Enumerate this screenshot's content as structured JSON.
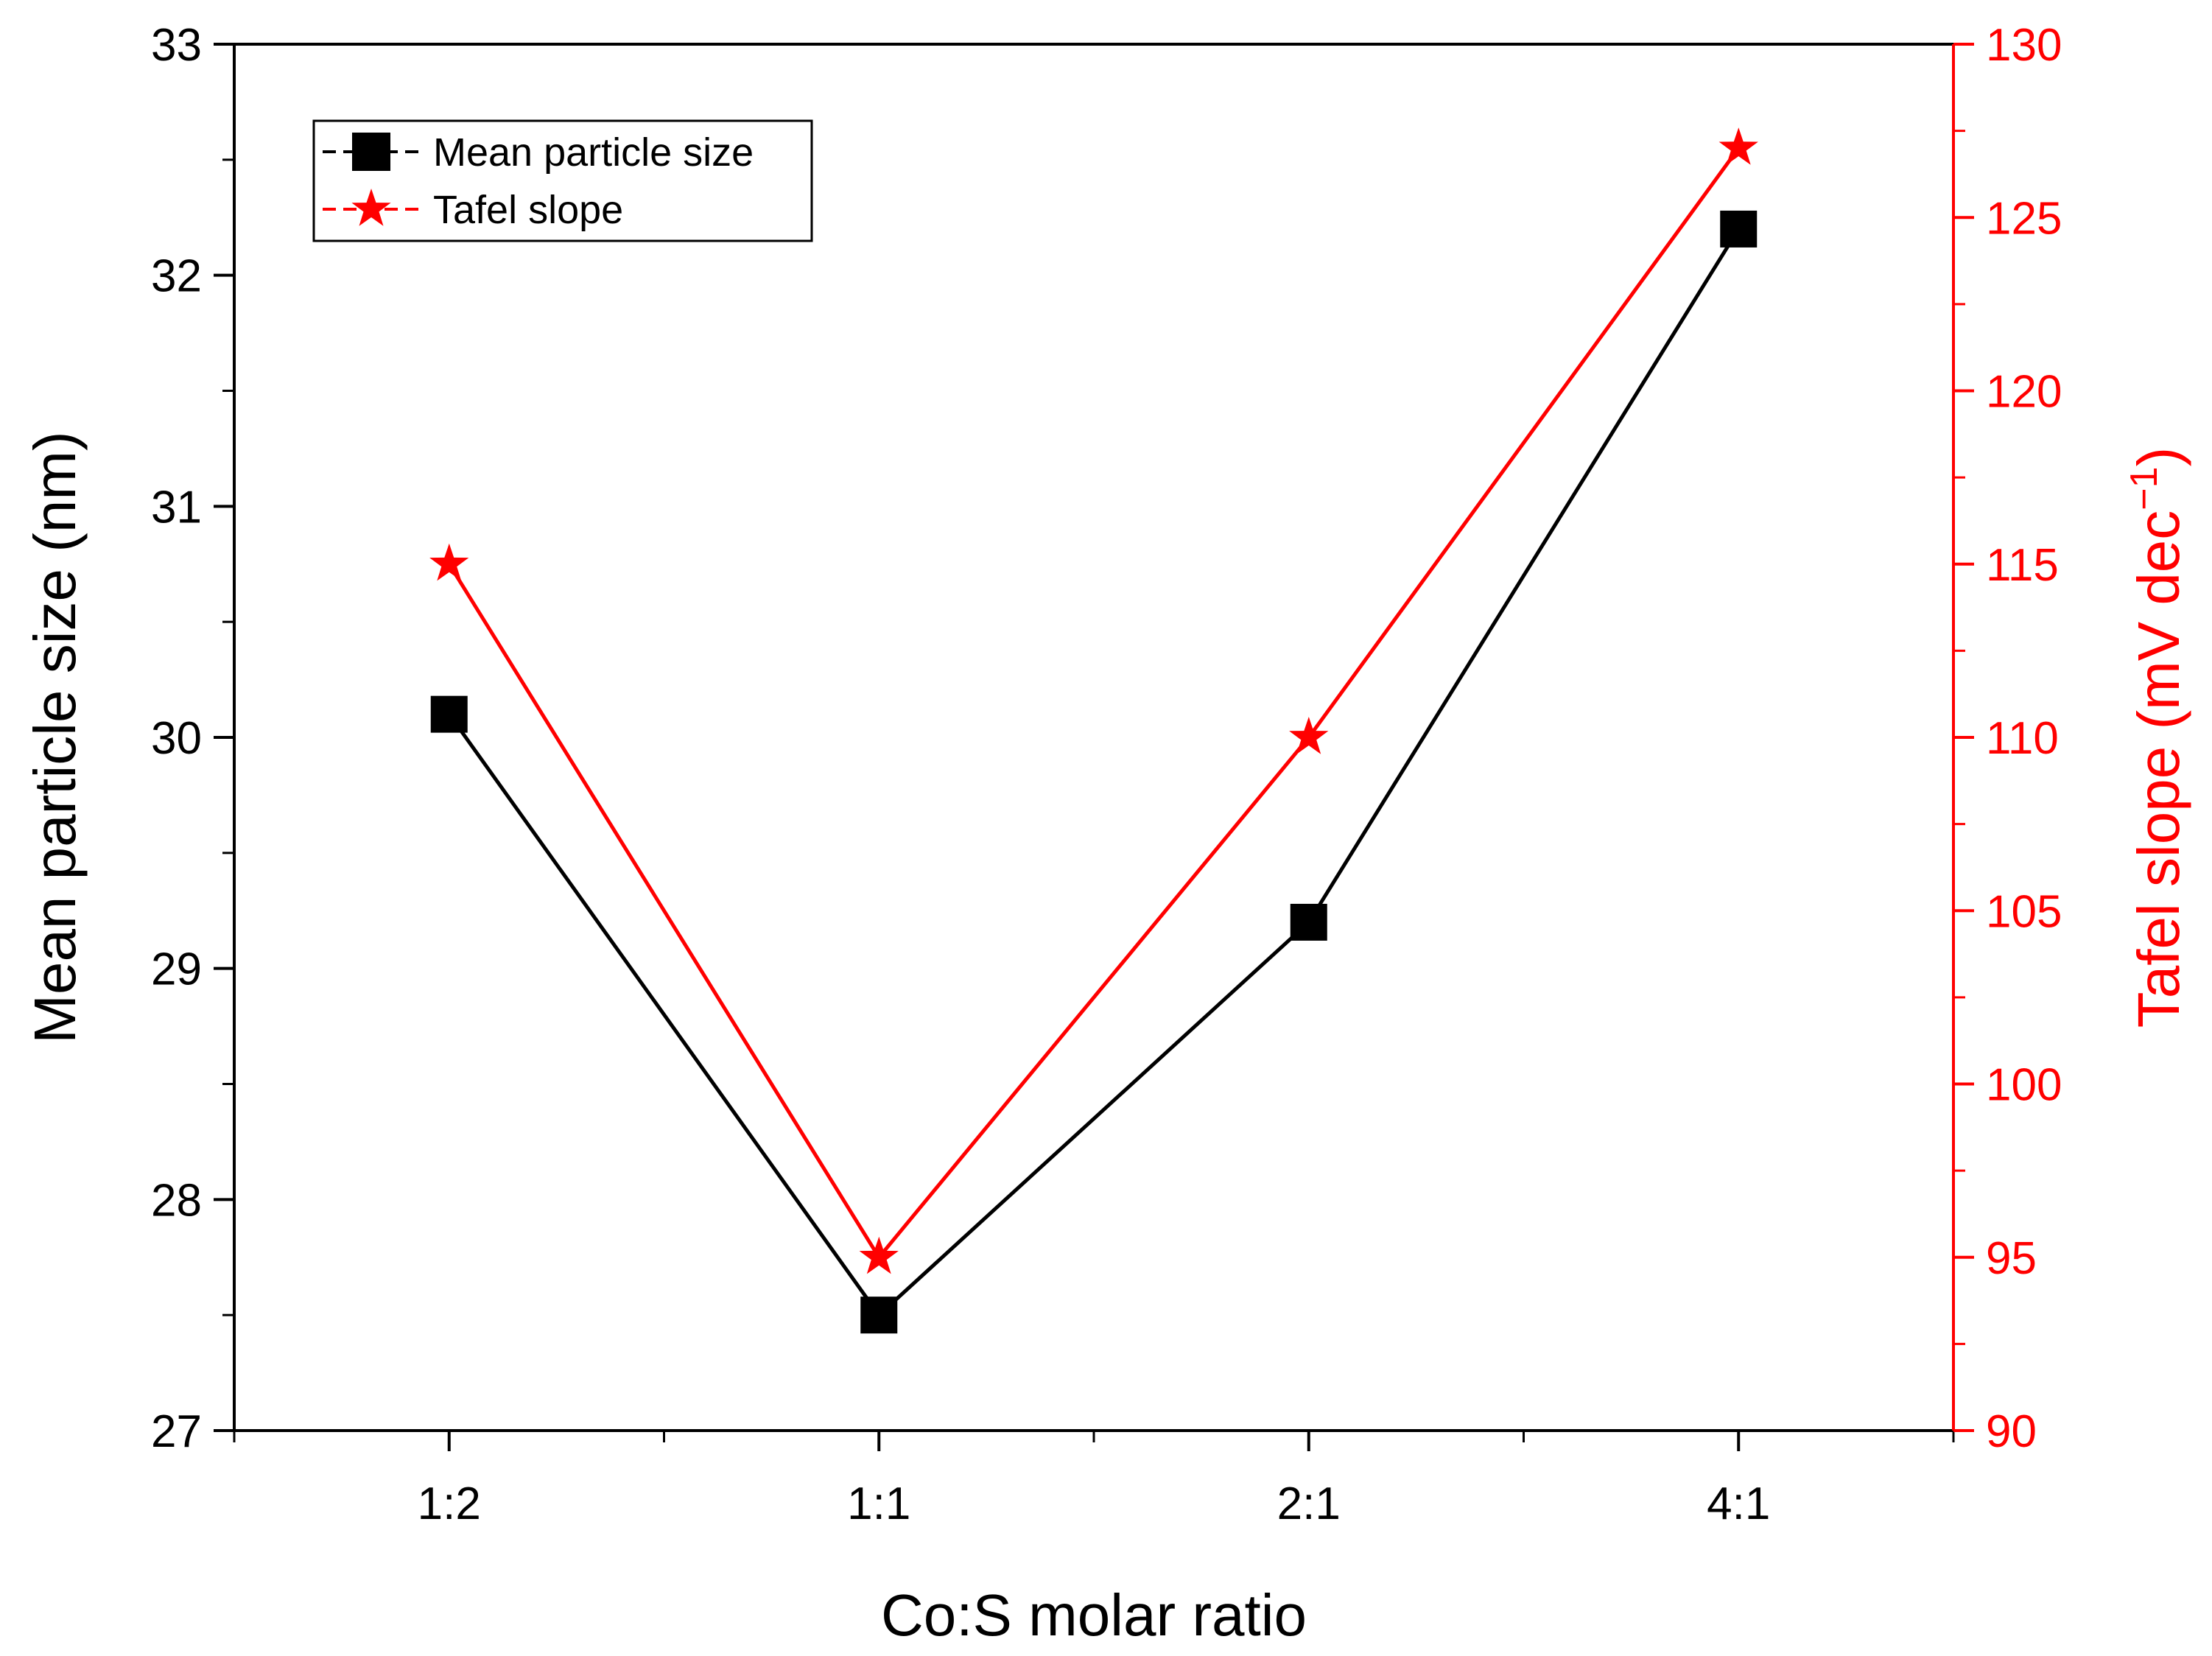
{
  "chart_data": {
    "type": "line",
    "categories": [
      "1:2",
      "1:1",
      "2:1",
      "4:1"
    ],
    "xlabel": "Co:S molar ratio",
    "x_range": [
      0.5,
      4.5
    ],
    "series": [
      {
        "name": "Mean particle size",
        "axis": "left",
        "marker": "square",
        "color": "#000000",
        "values": [
          30.1,
          27.5,
          29.2,
          32.2
        ]
      },
      {
        "name": "Tafel slope",
        "axis": "right",
        "marker": "star",
        "color": "#ff0000",
        "values": [
          115,
          95,
          110,
          127
        ]
      }
    ],
    "left_axis": {
      "label": "Mean particle size (nm)",
      "range": [
        27,
        33
      ],
      "ticks": [
        27,
        28,
        29,
        30,
        31,
        32,
        33
      ],
      "minor_step": 0.5,
      "color": "#000000"
    },
    "right_axis": {
      "label_main": "Tafel slope (mV dec",
      "label_superscript": "−1",
      "label_close": ")",
      "range": [
        90,
        130
      ],
      "ticks": [
        90,
        95,
        100,
        105,
        110,
        115,
        120,
        125,
        130
      ],
      "minor_step": 2.5,
      "color": "#ff0000"
    },
    "legend": {
      "position": "top-left"
    }
  }
}
